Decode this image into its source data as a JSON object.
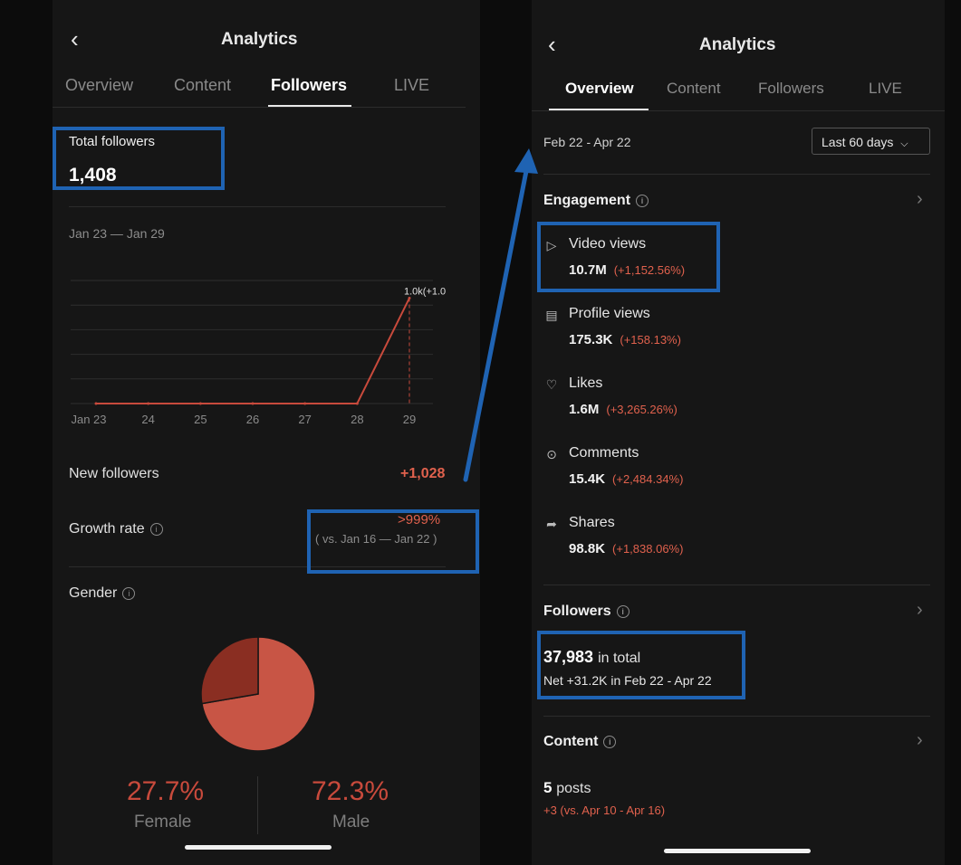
{
  "left": {
    "header_title": "Analytics",
    "tabs": [
      "Overview",
      "Content",
      "Followers",
      "LIVE"
    ],
    "total_followers_label": "Total followers",
    "total_followers_value": "1,408",
    "date_range": "Jan 23 — Jan 29",
    "chart_data": {
      "type": "line",
      "x": [
        "Jan 23",
        "24",
        "25",
        "26",
        "27",
        "28",
        "29"
      ],
      "values": [
        0,
        0,
        0,
        0,
        0,
        0,
        1028
      ],
      "annotation": "1.0k(+1.0",
      "ylim": [
        0,
        1200
      ],
      "grid": true,
      "color": "#c84a3c"
    },
    "new_followers_label": "New followers",
    "new_followers_value": "+1,028",
    "growth_rate_label": "Growth rate",
    "growth_rate_value": ">999%",
    "growth_rate_compare": "( vs. Jan 16 — Jan 22 )",
    "gender_label": "Gender",
    "gender": {
      "female_pct": "27.7%",
      "female_label": "Female",
      "male_pct": "72.3%",
      "male_label": "Male",
      "female_fraction": 0.277,
      "female_color": "#8a2e22",
      "male_color": "#c85545"
    }
  },
  "right": {
    "header_title": "Analytics",
    "tabs": [
      "Overview",
      "Content",
      "Followers",
      "LIVE"
    ],
    "date_range": "Feb 22 - Apr 22",
    "range_select": "Last 60 days",
    "engagement_label": "Engagement",
    "metrics": [
      {
        "icon": "play-icon",
        "label": "Video views",
        "value": "10.7M",
        "change": "(+1,152.56%)"
      },
      {
        "icon": "profile-doc-icon",
        "label": "Profile views",
        "value": "175.3K",
        "change": "(+158.13%)"
      },
      {
        "icon": "heart-icon",
        "label": "Likes",
        "value": "1.6M",
        "change": "(+3,265.26%)"
      },
      {
        "icon": "comment-icon",
        "label": "Comments",
        "value": "15.4K",
        "change": "(+2,484.34%)"
      },
      {
        "icon": "share-icon",
        "label": "Shares",
        "value": "98.8K",
        "change": "(+1,838.06%)"
      }
    ],
    "followers_label": "Followers",
    "followers_total": "37,983",
    "followers_total_suffix": "in total",
    "followers_net": "Net +31.2K in Feb 22 - Apr 22",
    "content_label": "Content",
    "posts_count": "5",
    "posts_suffix": "posts",
    "posts_change": "+3 (vs. Apr 10 - Apr 16)"
  },
  "colors": {
    "annotation_blue": "#1f63b3",
    "accent_red": "#e0614d"
  }
}
